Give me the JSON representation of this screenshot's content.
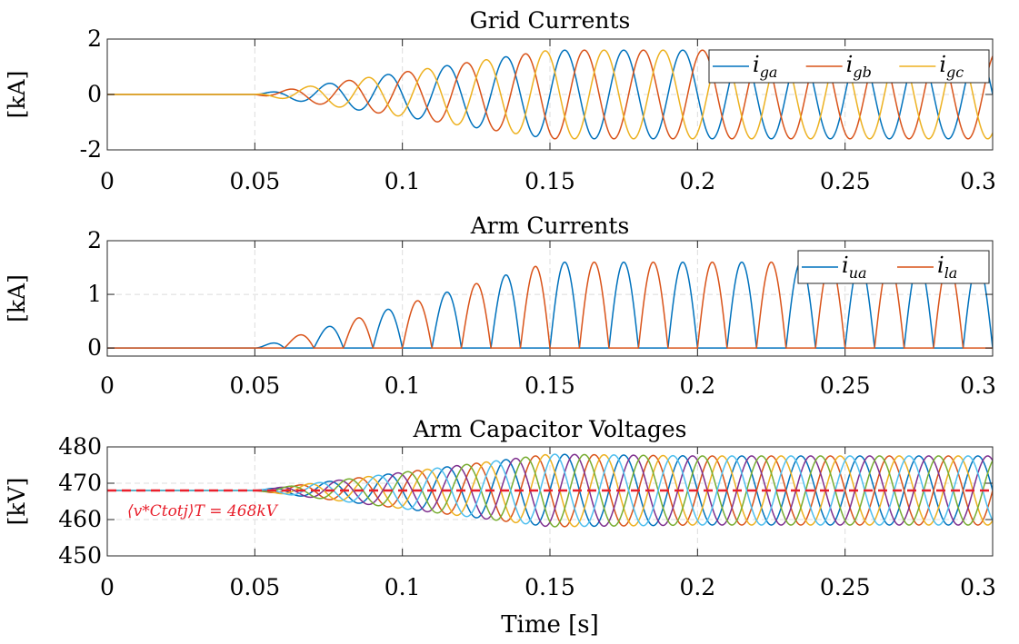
{
  "chart_data": [
    {
      "type": "line",
      "title": "Grid Currents",
      "ylabel": "[kA]",
      "xlabel": "",
      "xlim": [
        0,
        0.3
      ],
      "ylim": [
        -2,
        2
      ],
      "xticks": [
        0,
        0.05,
        0.1,
        0.15,
        0.2,
        0.25,
        0.3
      ],
      "xtick_labels": [
        "0",
        "0.05",
        "0.1",
        "0.15",
        "0.2",
        "0.25",
        "0.3"
      ],
      "yticks": [
        -2,
        0,
        2
      ],
      "ytick_labels": [
        "-2",
        "0",
        "2"
      ],
      "grid": true,
      "legend_position": "top-right",
      "signal": "three-phase sinusoid, 50 Hz, amplitude ramping from 0 at t=0.05 s to 1.6 kA at t=0.15 s",
      "x": [
        0,
        0.05,
        0.075,
        0.1,
        0.125,
        0.15,
        0.2,
        0.3
      ],
      "series": [
        {
          "name": "i_ga",
          "label_main": "i",
          "label_sub": "ga",
          "color": "#0072bd",
          "peak": [
            0,
            0,
            0.4,
            0.8,
            1.2,
            1.6,
            1.6,
            1.6
          ],
          "phase_deg": 0
        },
        {
          "name": "i_gb",
          "label_main": "i",
          "label_sub": "gb",
          "color": "#d95319",
          "peak": [
            0,
            0,
            0.4,
            0.8,
            1.2,
            1.6,
            1.6,
            1.6
          ],
          "phase_deg": -120
        },
        {
          "name": "i_gc",
          "label_main": "i",
          "label_sub": "gc",
          "color": "#edb120",
          "peak": [
            0,
            0,
            0.4,
            0.8,
            1.2,
            1.6,
            1.6,
            1.6
          ],
          "phase_deg": 120
        }
      ]
    },
    {
      "type": "line",
      "title": "Arm Currents",
      "ylabel": "[kA]",
      "xlabel": "",
      "xlim": [
        0,
        0.3
      ],
      "ylim": [
        -0.15,
        2
      ],
      "xticks": [
        0,
        0.05,
        0.1,
        0.15,
        0.2,
        0.25,
        0.3
      ],
      "xtick_labels": [
        "0",
        "0.05",
        "0.1",
        "0.15",
        "0.2",
        "0.25",
        "0.3"
      ],
      "yticks": [
        0,
        1,
        2
      ],
      "ytick_labels": [
        "0",
        "1",
        "2"
      ],
      "grid": true,
      "legend_position": "top-right",
      "signal": "half-wave rectified sinusoids, upper arm on positive half cycles, lower arm on negative half cycles",
      "x": [
        0,
        0.05,
        0.075,
        0.1,
        0.125,
        0.15,
        0.2,
        0.3
      ],
      "series": [
        {
          "name": "i_ua",
          "label_main": "i",
          "label_sub": "ua",
          "color": "#0072bd",
          "peak": [
            0,
            0,
            0.4,
            0.8,
            1.2,
            1.6,
            1.6,
            1.6
          ]
        },
        {
          "name": "i_la",
          "label_main": "i",
          "label_sub": "la",
          "color": "#d95319",
          "peak": [
            0,
            0,
            0.4,
            0.8,
            1.2,
            1.6,
            1.6,
            1.6
          ]
        }
      ]
    },
    {
      "type": "line",
      "title": "Arm Capacitor Voltages",
      "ylabel": "[kV]",
      "xlabel": "Time [s]",
      "xlim": [
        0,
        0.3
      ],
      "ylim": [
        450,
        480
      ],
      "xticks": [
        0,
        0.05,
        0.1,
        0.15,
        0.2,
        0.25,
        0.3
      ],
      "xtick_labels": [
        "0",
        "0.05",
        "0.1",
        "0.15",
        "0.2",
        "0.25",
        "0.3"
      ],
      "yticks": [
        450,
        460,
        470,
        480
      ],
      "ytick_labels": [
        "450",
        "460",
        "470",
        "480"
      ],
      "grid": true,
      "offset": 468,
      "signal": "six sinusoids around 468 kV with amplitude ramping from 0 at t=0.05 s to 10 kV at t=0.15 s",
      "x": [
        0,
        0.05,
        0.075,
        0.1,
        0.125,
        0.15,
        0.2,
        0.3
      ],
      "amplitude": [
        0,
        0,
        2.5,
        5,
        7.5,
        10,
        9.5,
        9.5
      ],
      "series": [
        {
          "color": "#0072bd",
          "phase_deg": 0
        },
        {
          "color": "#d95319",
          "phase_deg": 180
        },
        {
          "color": "#edb120",
          "phase_deg": 120
        },
        {
          "color": "#7e2f8e",
          "phase_deg": 300
        },
        {
          "color": "#77ac30",
          "phase_deg": 240
        },
        {
          "color": "#4dbeee",
          "phase_deg": 60
        }
      ],
      "reference_line": {
        "value": 468,
        "color": "#e8202c"
      },
      "annotation": "⟨v*Ctotj⟩T = 468kV"
    }
  ]
}
